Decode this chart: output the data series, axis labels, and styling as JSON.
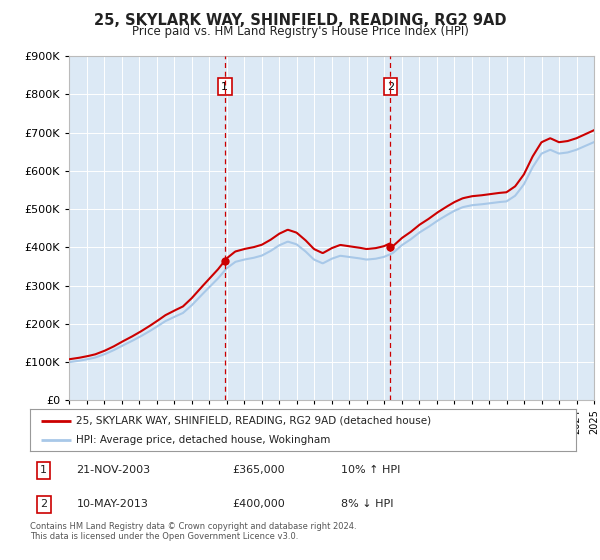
{
  "title": "25, SKYLARK WAY, SHINFIELD, READING, RG2 9AD",
  "subtitle": "Price paid vs. HM Land Registry's House Price Index (HPI)",
  "legend_line1": "25, SKYLARK WAY, SHINFIELD, READING, RG2 9AD (detached house)",
  "legend_line2": "HPI: Average price, detached house, Wokingham",
  "annotation1_date": "21-NOV-2003",
  "annotation1_price": "£365,000",
  "annotation1_hpi": "10% ↑ HPI",
  "annotation2_date": "10-MAY-2013",
  "annotation2_price": "£400,000",
  "annotation2_hpi": "8% ↓ HPI",
  "footer": "Contains HM Land Registry data © Crown copyright and database right 2024.\nThis data is licensed under the Open Government Licence v3.0.",
  "sale1_year": 2003.9,
  "sale1_price": 365000,
  "sale2_year": 2013.37,
  "sale2_price": 400000,
  "hpi_color": "#a8c8e8",
  "price_color": "#cc0000",
  "background_color": "#dce9f5",
  "ylim": [
    0,
    900000
  ],
  "xlim_start": 1995,
  "xlim_end": 2025
}
